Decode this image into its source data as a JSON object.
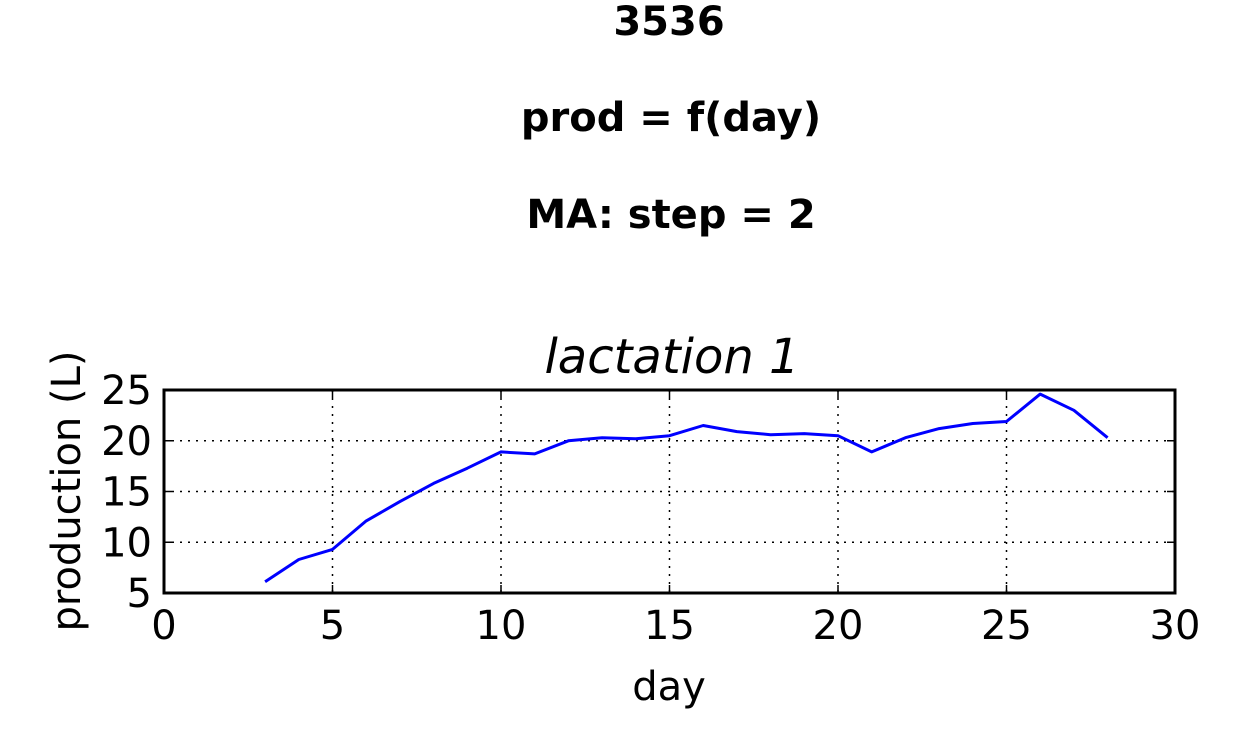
{
  "titles": [
    "3536",
    "prod = f(day)",
    "MA: step = 2"
  ],
  "chart_data": {
    "type": "line",
    "title": "lactation 1",
    "xlabel": "day",
    "ylabel": "production (L)",
    "xlim": [
      0,
      30
    ],
    "ylim": [
      5,
      25
    ],
    "xticks": [
      0,
      5,
      10,
      15,
      20,
      25,
      30
    ],
    "yticks": [
      5,
      10,
      15,
      20,
      25
    ],
    "grid": true,
    "line_color": "#0000ff",
    "series": [
      {
        "x": [
          3,
          4,
          5,
          6,
          7,
          8,
          9,
          10,
          11,
          12,
          13,
          14,
          15,
          16,
          17,
          18,
          19,
          20,
          21,
          22,
          23,
          24,
          25,
          26,
          27,
          28
        ],
        "values": [
          6.1,
          8.3,
          9.3,
          12.1,
          14.0,
          15.8,
          17.3,
          18.9,
          18.7,
          20.0,
          20.3,
          20.2,
          20.5,
          21.5,
          20.9,
          20.6,
          20.7,
          20.5,
          18.9,
          20.3,
          21.2,
          21.7,
          21.9,
          24.6,
          23.0,
          20.3
        ]
      }
    ]
  }
}
